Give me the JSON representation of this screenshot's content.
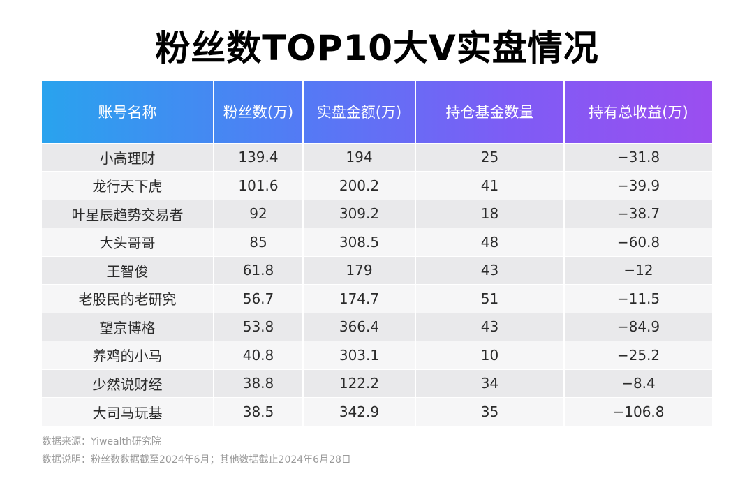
{
  "chart_data": {
    "type": "table",
    "title": "粉丝数TOP10大V实盘情况",
    "columns": [
      "账号名称",
      "粉丝数(万)",
      "实盘金额(万)",
      "持仓基金数量",
      "持有总收益(万)"
    ],
    "rows": [
      [
        "小高理财",
        "139.4",
        "194",
        "25",
        "−31.8"
      ],
      [
        "龙行天下虎",
        "101.6",
        "200.2",
        "41",
        "−39.9"
      ],
      [
        "叶星辰趋势交易者",
        "92",
        "309.2",
        "18",
        "−38.7"
      ],
      [
        "大头哥哥",
        "85",
        "308.5",
        "48",
        "−60.8"
      ],
      [
        "王智俊",
        "61.8",
        "179",
        "43",
        "−12"
      ],
      [
        "老股民的老研究",
        "56.7",
        "174.7",
        "51",
        "−11.5"
      ],
      [
        "望京博格",
        "53.8",
        "366.4",
        "43",
        "−84.9"
      ],
      [
        "养鸡的小马",
        "40.8",
        "303.1",
        "10",
        "−25.2"
      ],
      [
        "少然说财经",
        "38.8",
        "122.2",
        "34",
        "−8.4"
      ],
      [
        "大司马玩基",
        "38.5",
        "342.9",
        "35",
        "−106.8"
      ]
    ]
  },
  "notes": {
    "source": "数据来源：Yiwealth研究院",
    "explanation": "数据说明：粉丝数数据截至2024年6月；其他数据截止2024年6月28日"
  },
  "colors": {
    "header_gradient_start": "#29a3ee",
    "header_gradient_end": "#9b4ef0",
    "row_odd": "#e9e9eb",
    "row_even": "#f6f6f7"
  }
}
